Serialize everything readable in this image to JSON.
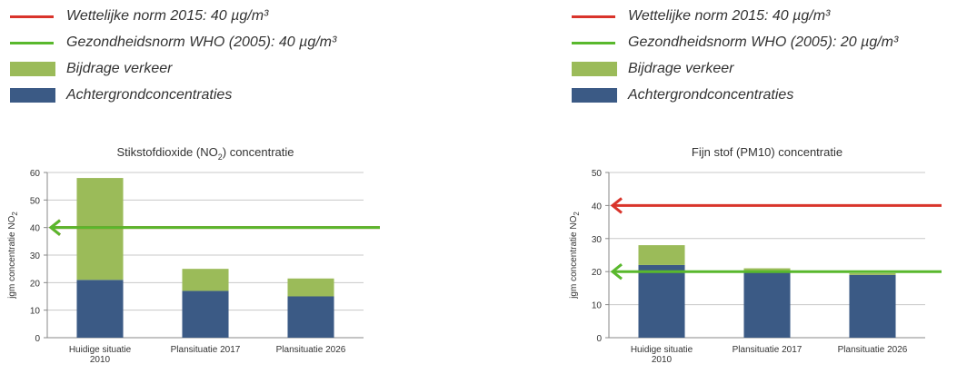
{
  "left": {
    "legend": [
      {
        "label": "Wettelijke norm 2015: 40 µg/m³",
        "kind": "line",
        "color": "#d9342b"
      },
      {
        "label": "Gezondheidsnorm WHO (2005): 40 µg/m³",
        "kind": "line",
        "color": "#59b82d"
      },
      {
        "label": "Bijdrage verkeer",
        "kind": "swatch",
        "color": "#9bbb59"
      },
      {
        "label": "Achtergrondconcentraties",
        "kind": "swatch",
        "color": "#3b5a85"
      }
    ]
  },
  "right": {
    "legend": [
      {
        "label": "Wettelijke norm 2015: 40 µg/m³",
        "kind": "line",
        "color": "#d9342b"
      },
      {
        "label": "Gezondheidsnorm WHO (2005): 20 µg/m³",
        "kind": "line",
        "color": "#59b82d"
      },
      {
        "label": "Bijdrage verkeer",
        "kind": "swatch",
        "color": "#9bbb59"
      },
      {
        "label": "Achtergrondconcentraties",
        "kind": "swatch",
        "color": "#3b5a85"
      }
    ]
  },
  "chart_data": [
    {
      "type": "bar",
      "stacked": true,
      "title_main": "Stikstofdioxide (NO",
      "title_sub": "2",
      "title_tail": ") concentratie",
      "ylabel_main": "jgm concentratie NO",
      "ylabel_sub": "2",
      "categories": [
        [
          "Huidige situatie",
          "2010"
        ],
        [
          "Plansituatie 2017"
        ],
        [
          "Plansituatie 2026"
        ]
      ],
      "series": [
        {
          "name": "Achtergrondconcentraties",
          "values": [
            21,
            17,
            15
          ],
          "color": "#3b5a85"
        },
        {
          "name": "Bijdrage verkeer",
          "values": [
            37,
            8,
            6.5
          ],
          "color": "#9bbb59"
        }
      ],
      "ylim": [
        0,
        60
      ],
      "yticks": [
        0,
        10,
        20,
        30,
        40,
        50,
        60
      ],
      "reference_lines": [
        {
          "value": 40,
          "color": "#d9342b"
        },
        {
          "value": 40,
          "color": "#59b82d"
        }
      ],
      "grid": true
    },
    {
      "type": "bar",
      "stacked": true,
      "title_main": "Fijn stof (PM10) concentratie",
      "title_sub": "",
      "title_tail": "",
      "ylabel_main": "jgm concentratie NO",
      "ylabel_sub": "2",
      "categories": [
        [
          "Huidige situatie",
          "2010"
        ],
        [
          "Plansituatie 2017"
        ],
        [
          "Plansituatie 2026"
        ]
      ],
      "series": [
        {
          "name": "Achtergrondconcentraties",
          "values": [
            22,
            20,
            19
          ],
          "color": "#3b5a85"
        },
        {
          "name": "Bijdrage verkeer",
          "values": [
            6,
            1,
            0.5
          ],
          "color": "#9bbb59"
        }
      ],
      "ylim": [
        0,
        50
      ],
      "yticks": [
        0,
        10,
        20,
        30,
        40,
        50
      ],
      "reference_lines": [
        {
          "value": 40,
          "color": "#d9342b"
        },
        {
          "value": 20,
          "color": "#59b82d"
        }
      ],
      "grid": true
    }
  ]
}
